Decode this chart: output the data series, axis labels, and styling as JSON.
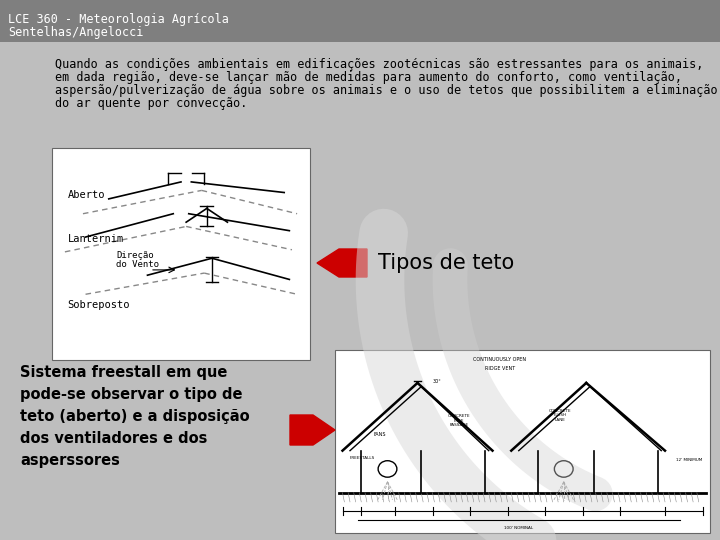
{
  "bg_header_color": "#7f7f7f",
  "bg_main_color": "#bebebe",
  "header_title_line1": "LCE 360 - Meteorologia Agrícola",
  "header_title_line2": "Sentelhas/Angelocci",
  "header_text_color": "#ffffff",
  "body_text_line1": "Quando as condições ambientais em edificações zootécnicas são estressantes para os animais,",
  "body_text_line2": "em dada região, deve-se lançar mão de medidas para aumento do conforto, como ventilação,",
  "body_text_line3": "aspersão/pulverização de água sobre os animais e o uso de tetos que possibilitem a eliminação",
  "body_text_line4": "do ar quente por convecção.",
  "body_text_color": "#000000",
  "body_text_fontsize": 8.5,
  "tipos_label": "Tipos de teto",
  "tipos_fontsize": 15,
  "arrow_color": "#cc0000",
  "label_aberto": "Aberto",
  "label_lanternim": "Lanternim",
  "label_direcao_line1": "Direção",
  "label_direcao_line2": "do Vento",
  "label_sobreposto": "Sobreposto",
  "freestall_text_line1": "Sistema freestall em que",
  "freestall_text_line2": "pode-se observar o tipo de",
  "freestall_text_line3": "teto (aberto) e a disposição",
  "freestall_text_line4": "dos ventiladores e dos",
  "freestall_text_line5": "asperssores",
  "freestall_text_fontsize": 10.5,
  "freestall_text_color": "#000000",
  "decorative_arc_color": "#c8c8c8"
}
